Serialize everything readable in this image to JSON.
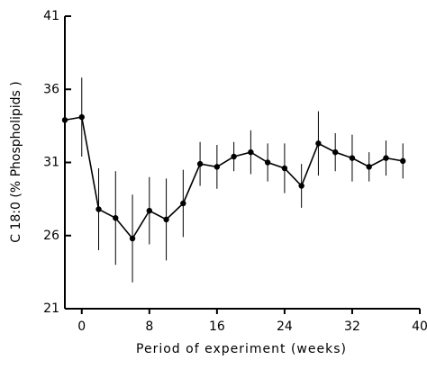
{
  "chart_data": {
    "type": "line",
    "title": null,
    "x_label": "Period of experiment (weeks)",
    "y_label": "C 18:0 (% Phospholipids )",
    "xlim": [
      -2,
      40
    ],
    "xticks": [
      0,
      8,
      16,
      24,
      32,
      40
    ],
    "ylim": [
      21,
      41
    ],
    "yticks": [
      21,
      26,
      31,
      36,
      41
    ],
    "color": "#000000",
    "x": [
      -2,
      0,
      2,
      4,
      6,
      8,
      10,
      12,
      14,
      16,
      18,
      20,
      22,
      24,
      26,
      28,
      30,
      32,
      34,
      36,
      38
    ],
    "values": [
      33.9,
      34.1,
      27.8,
      27.2,
      25.8,
      27.7,
      27.1,
      28.2,
      30.9,
      30.7,
      31.4,
      31.7,
      31.0,
      30.6,
      29.4,
      32.3,
      31.7,
      31.3,
      30.7,
      31.3,
      31.1
    ],
    "errors": [
      1.0,
      2.7,
      2.8,
      3.2,
      3.0,
      2.3,
      2.8,
      2.3,
      1.5,
      1.5,
      1.0,
      1.5,
      1.3,
      1.7,
      1.5,
      2.2,
      1.3,
      1.6,
      1.0,
      1.2,
      1.2
    ]
  }
}
